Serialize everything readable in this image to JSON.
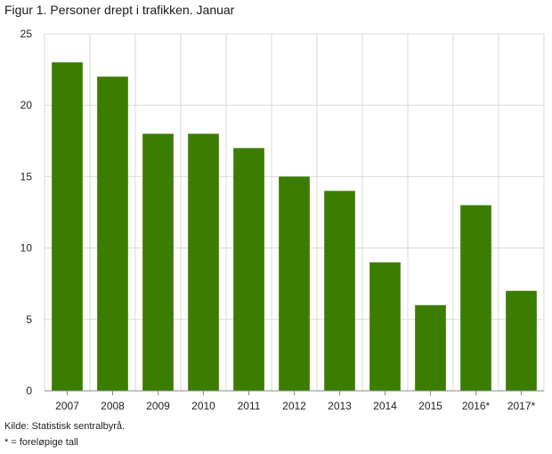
{
  "title": "Figur 1. Personer drept i trafikken. Januar",
  "chart_data": {
    "type": "bar",
    "title": "Figur 1. Personer drept i trafikken. Januar",
    "xlabel": "",
    "ylabel": "",
    "categories": [
      "2007",
      "2008",
      "2009",
      "2010",
      "2011",
      "2012",
      "2013",
      "2014",
      "2015",
      "2016*",
      "2017*"
    ],
    "values": [
      23,
      22,
      18,
      18,
      17,
      15,
      14,
      9,
      6,
      13,
      7
    ],
    "ylim": [
      0,
      25
    ],
    "yticks": [
      0,
      5,
      10,
      15,
      20,
      25
    ],
    "grid": true,
    "legend": "none",
    "bar_color": "#3a7d00"
  },
  "footer": {
    "source": "Kilde: Statistisk sentralbyrå.",
    "note": "* = foreløpige tall"
  }
}
